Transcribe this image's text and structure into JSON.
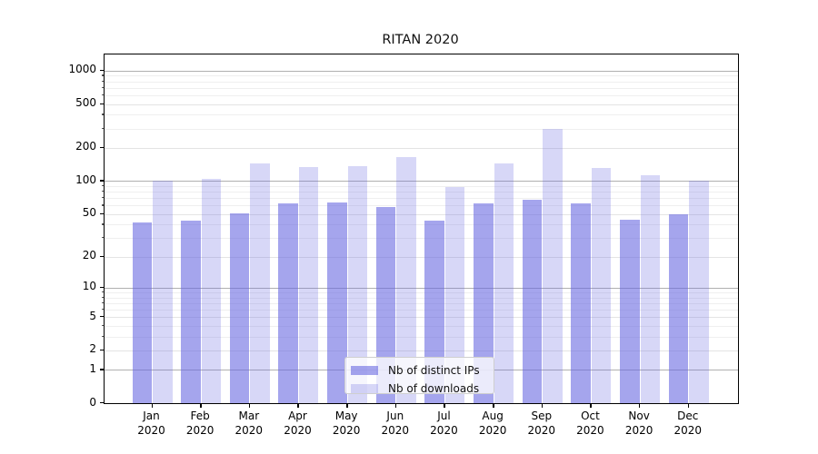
{
  "title": "RITAN 2020",
  "chart_data": {
    "type": "bar",
    "title": "RITAN 2020",
    "categories": [
      "Jan 2020",
      "Feb 2020",
      "Mar 2020",
      "Apr 2020",
      "May 2020",
      "Jun 2020",
      "Jul 2020",
      "Aug 2020",
      "Sep 2020",
      "Oct 2020",
      "Nov 2020",
      "Dec 2020"
    ],
    "series": [
      {
        "name": "Nb of distinct IPs",
        "color": "#6666E096",
        "values": [
          42,
          43,
          51,
          62,
          64,
          58,
          43,
          62,
          68,
          62,
          44,
          50
        ]
      },
      {
        "name": "Nb of downloads",
        "color": "#6666E042",
        "values": [
          100,
          105,
          144,
          133,
          137,
          166,
          88,
          144,
          300,
          131,
          112,
          100
        ]
      }
    ],
    "yscale": "log10(value+1)",
    "yticks": [
      0,
      1,
      2,
      5,
      10,
      20,
      50,
      100,
      200,
      500,
      1000
    ],
    "ylim": [
      0,
      1400
    ],
    "xlabel": "",
    "ylabel": "",
    "grid": true,
    "legend_position": "lower-center",
    "colors": {
      "major_gridline": "#b0b0b0",
      "labeled_gridline": "#e4e4e4",
      "minor_gridline": "#efefef",
      "spine": "#000000"
    }
  }
}
